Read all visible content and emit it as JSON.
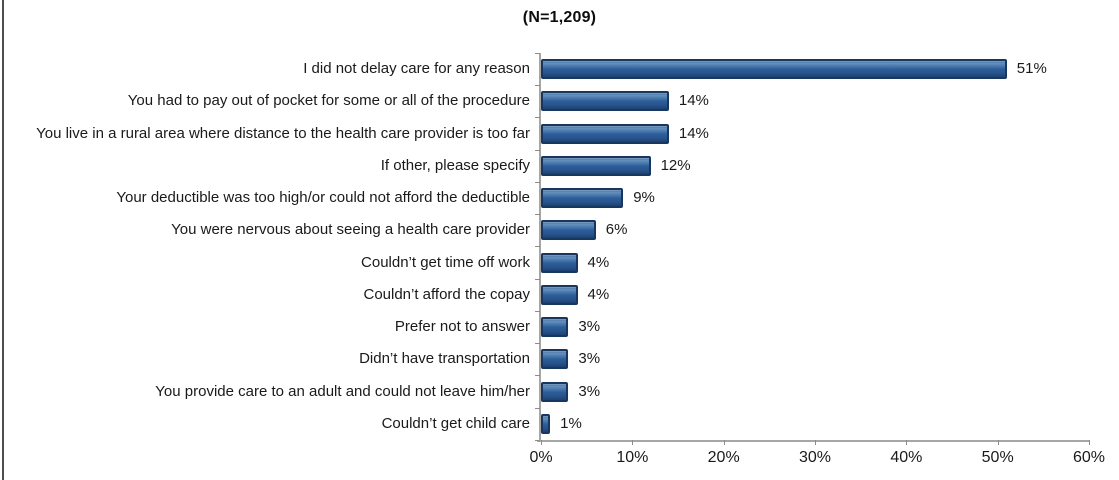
{
  "title": "(N=1,209)",
  "chart_data": {
    "type": "bar",
    "orientation": "horizontal",
    "title": "(N=1,209)",
    "categories": [
      "I did not delay care for any reason",
      "You had to pay out of pocket for some or all of the procedure",
      "You live in a rural area where distance to the health care provider is too far",
      "If other, please specify",
      "Your deductible was too high/or could not afford the deductible",
      "You were nervous about seeing a health care provider",
      "Couldn’t get time off work",
      "Couldn’t afford the copay",
      "Prefer not to answer",
      "Didn’t have transportation",
      "You provide care to an adult and could not leave him/her",
      "Couldn’t get child care"
    ],
    "values": [
      51,
      14,
      14,
      12,
      9,
      6,
      4,
      4,
      3,
      3,
      3,
      1
    ],
    "value_labels": [
      "51%",
      "14%",
      "14%",
      "12%",
      "9%",
      "6%",
      "4%",
      "4%",
      "3%",
      "3%",
      "3%",
      "1%"
    ],
    "xlabel": "",
    "ylabel": "",
    "xlim": [
      0,
      60
    ],
    "x_tick_labels": [
      "0%",
      "10%",
      "20%",
      "30%",
      "40%",
      "50%",
      "60%"
    ],
    "x_tick_values": [
      0,
      10,
      20,
      30,
      40,
      50,
      60
    ],
    "grid": false,
    "legend": "none",
    "bar_fill_color": "#2d5d99",
    "bar_border_color": "#17375e",
    "axis_color": "#a6a6a6",
    "text_color": "#1a1a1a"
  }
}
